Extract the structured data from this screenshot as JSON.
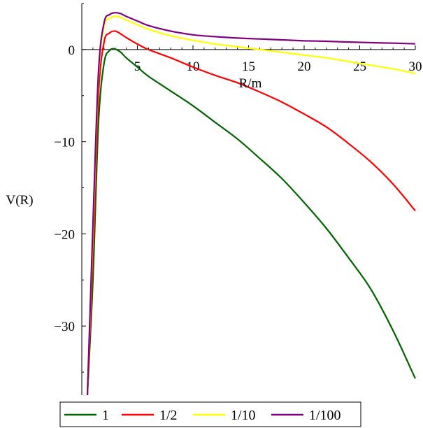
{
  "chart_data": {
    "type": "line",
    "xlabel": "R/m",
    "ylabel": "V(R)",
    "xlim": [
      0,
      30
    ],
    "ylim": [
      -37.5,
      5
    ],
    "xticks": [
      5,
      10,
      15,
      20,
      25,
      30
    ],
    "yticks": [
      0,
      -10,
      -20,
      -30
    ],
    "ytick_labels": [
      "0",
      "−10",
      "−20",
      "−30"
    ],
    "xtick_labels": [
      "5",
      "10",
      "15",
      "20",
      "25",
      "30"
    ],
    "grid": false,
    "legend_position": "bottom",
    "series": [
      {
        "name": "1",
        "color": "#006400",
        "points": [
          [
            0.5,
            -37.5
          ],
          [
            1.0,
            -25
          ],
          [
            1.5,
            -8
          ],
          [
            2.0,
            -1.5
          ],
          [
            2.5,
            -0.1
          ],
          [
            3.0,
            0.05
          ],
          [
            3.5,
            -0.3
          ],
          [
            4.0,
            -0.9
          ],
          [
            5.0,
            -1.9
          ],
          [
            6.0,
            -2.9
          ],
          [
            8.0,
            -4.5
          ],
          [
            10.0,
            -6.1
          ],
          [
            12.0,
            -7.9
          ],
          [
            14.0,
            -9.7
          ],
          [
            16.0,
            -11.8
          ],
          [
            18.0,
            -14.0
          ],
          [
            20.0,
            -16.6
          ],
          [
            22.0,
            -19.4
          ],
          [
            24.0,
            -22.6
          ],
          [
            26.0,
            -26.0
          ],
          [
            28.0,
            -30.5
          ],
          [
            30.0,
            -35.7
          ]
        ]
      },
      {
        "name": "1/2",
        "color": "#ff0000",
        "points": [
          [
            0.5,
            -37.5
          ],
          [
            1.0,
            -22
          ],
          [
            1.5,
            -5
          ],
          [
            2.0,
            0.8
          ],
          [
            2.5,
            1.8
          ],
          [
            3.0,
            2.0
          ],
          [
            3.5,
            1.7
          ],
          [
            4.0,
            1.3
          ],
          [
            5.0,
            0.6
          ],
          [
            6.0,
            0.0
          ],
          [
            8.0,
            -0.9
          ],
          [
            10.0,
            -1.9
          ],
          [
            12.0,
            -2.8
          ],
          [
            14.0,
            -3.6
          ],
          [
            16.0,
            -4.6
          ],
          [
            18.0,
            -5.7
          ],
          [
            20.0,
            -7.0
          ],
          [
            22.0,
            -8.4
          ],
          [
            24.0,
            -10.2
          ],
          [
            26.0,
            -12.2
          ],
          [
            28.0,
            -14.6
          ],
          [
            30.0,
            -17.5
          ]
        ]
      },
      {
        "name": "1/10",
        "color": "#ffff00",
        "points": [
          [
            0.5,
            -37.5
          ],
          [
            1.0,
            -20
          ],
          [
            1.5,
            -3
          ],
          [
            2.0,
            2.5
          ],
          [
            2.5,
            3.4
          ],
          [
            3.0,
            3.6
          ],
          [
            3.5,
            3.5
          ],
          [
            4.0,
            3.2
          ],
          [
            5.0,
            2.7
          ],
          [
            6.0,
            2.2
          ],
          [
            8.0,
            1.5
          ],
          [
            10.0,
            1.0
          ],
          [
            12.0,
            0.6
          ],
          [
            14.0,
            0.3
          ],
          [
            16.0,
            0.0
          ],
          [
            18.0,
            -0.3
          ],
          [
            20.0,
            -0.6
          ],
          [
            22.0,
            -0.9
          ],
          [
            24.0,
            -1.3
          ],
          [
            26.0,
            -1.7
          ],
          [
            28.0,
            -2.1
          ],
          [
            30.0,
            -2.6
          ]
        ]
      },
      {
        "name": "1/100",
        "color": "#800080",
        "points": [
          [
            0.5,
            -37.5
          ],
          [
            1.0,
            -19
          ],
          [
            1.5,
            -2.5
          ],
          [
            2.0,
            2.9
          ],
          [
            2.5,
            3.8
          ],
          [
            3.0,
            4.0
          ],
          [
            3.5,
            3.9
          ],
          [
            4.0,
            3.6
          ],
          [
            5.0,
            3.1
          ],
          [
            6.0,
            2.6
          ],
          [
            8.0,
            2.0
          ],
          [
            10.0,
            1.6
          ],
          [
            12.0,
            1.4
          ],
          [
            14.0,
            1.25
          ],
          [
            16.0,
            1.15
          ],
          [
            18.0,
            1.05
          ],
          [
            20.0,
            0.95
          ],
          [
            22.0,
            0.9
          ],
          [
            24.0,
            0.82
          ],
          [
            26.0,
            0.75
          ],
          [
            28.0,
            0.7
          ],
          [
            30.0,
            0.62
          ]
        ]
      }
    ]
  }
}
